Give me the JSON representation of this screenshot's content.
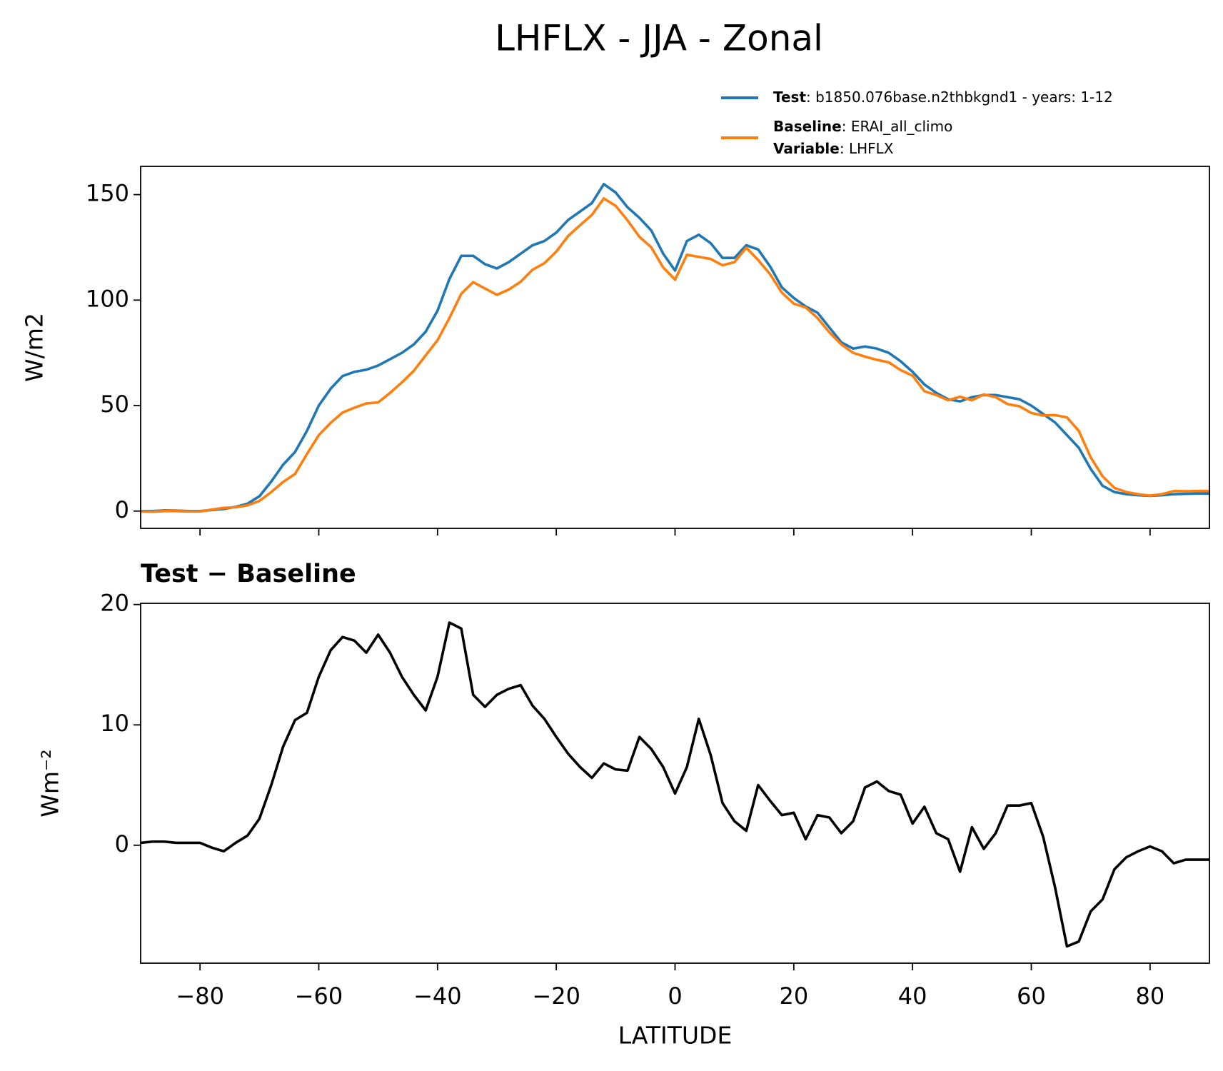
{
  "title": "LHFLX - JJA - Zonal",
  "chart_data": [
    {
      "type": "line",
      "ylabel": "W/m2",
      "xlim": [
        -90,
        90
      ],
      "ylim": [
        -8.2,
        163.4
      ],
      "xticks": [
        -80,
        -60,
        -40,
        -20,
        0,
        20,
        40,
        60,
        80
      ],
      "yticks": [
        0,
        50,
        100,
        150
      ],
      "x": [
        -90,
        -88,
        -86,
        -84,
        -82,
        -80,
        -78,
        -76,
        -74,
        -72,
        -70,
        -68,
        -66,
        -64,
        -62,
        -60,
        -58,
        -56,
        -54,
        -52,
        -50,
        -48,
        -46,
        -44,
        -42,
        -40,
        -38,
        -36,
        -34,
        -32,
        -30,
        -28,
        -26,
        -24,
        -22,
        -20,
        -18,
        -16,
        -14,
        -12,
        -10,
        -8,
        -6,
        -4,
        -2,
        0,
        2,
        4,
        6,
        8,
        10,
        12,
        14,
        16,
        18,
        20,
        22,
        24,
        26,
        28,
        30,
        32,
        34,
        36,
        38,
        40,
        42,
        44,
        46,
        48,
        50,
        52,
        54,
        56,
        58,
        60,
        62,
        64,
        66,
        68,
        70,
        72,
        74,
        76,
        78,
        80,
        82,
        84,
        86,
        88,
        90
      ],
      "series": [
        {
          "name": "Test",
          "label": ": b1850.076base.n2thbkgnd1 - years: 1-12",
          "color": "#1f77b4",
          "values": [
            0,
            0,
            0.3,
            0.2,
            0,
            0,
            0.5,
            1,
            2,
            3.5,
            7,
            14,
            22,
            28,
            38,
            50,
            58,
            64,
            66,
            67,
            69,
            72,
            75,
            79,
            85,
            95,
            110,
            121,
            121,
            117,
            115,
            118,
            122,
            126,
            128,
            132,
            138,
            142,
            146,
            155,
            151,
            144,
            139,
            133,
            122,
            114,
            128,
            131,
            127,
            120,
            120,
            126,
            124,
            116,
            106,
            101,
            97,
            94,
            87,
            80,
            77,
            78,
            77,
            75,
            71,
            66,
            60,
            56,
            53,
            52,
            54,
            55,
            55,
            54,
            53,
            50,
            46,
            42,
            36,
            30,
            20,
            12,
            9,
            8,
            7.5,
            7.2,
            7.5,
            8,
            8.2,
            8.3,
            8.3
          ]
        },
        {
          "name": "Baseline",
          "label": ": ERAI_all_climo",
          "color": "#ff7f0e",
          "values": [
            -0.2,
            -0.3,
            0,
            0,
            -0.2,
            -0.2,
            0.7,
            1.5,
            1.8,
            2.7,
            4.8,
            9,
            13.8,
            17.6,
            27,
            36,
            41.8,
            46.7,
            49,
            51,
            51.5,
            56,
            61,
            66.5,
            73.8,
            81,
            91.5,
            103,
            108.5,
            105.5,
            102.5,
            105,
            108.7,
            114.4,
            117.5,
            123,
            130.4,
            135.5,
            140.4,
            148.2,
            144.7,
            137.8,
            130,
            125,
            115.5,
            109.7,
            121.5,
            120.5,
            119.5,
            116.5,
            118,
            124.8,
            119,
            112.3,
            103.5,
            98.3,
            96.5,
            91.5,
            84.7,
            79,
            75,
            73.2,
            71.7,
            70.5,
            66.8,
            64.2,
            56.8,
            55,
            52.5,
            54.2,
            52.5,
            55.3,
            54,
            50.7,
            49.7,
            46.5,
            45.3,
            45.5,
            44.4,
            38,
            25.5,
            16.5,
            11,
            9,
            8,
            7.3,
            8,
            9.5,
            9.4,
            9.5,
            9.5
          ]
        }
      ],
      "legend_extra": {
        "name": "Variable",
        "label": ": LHFLX"
      }
    },
    {
      "type": "line",
      "title": "Test − Baseline",
      "xlabel": "LATITUDE",
      "ylabel": "Wm⁻²",
      "xlim": [
        -90,
        90
      ],
      "ylim": [
        -9.8,
        20.1
      ],
      "xticks": [
        {
          "value": -80,
          "label": "−80"
        },
        {
          "value": -60,
          "label": "−60"
        },
        {
          "value": -40,
          "label": "−40"
        },
        {
          "value": -20,
          "label": "−20"
        },
        0,
        20,
        40,
        60,
        80
      ],
      "yticks": [
        0,
        10,
        20
      ],
      "x": [
        -90,
        -88,
        -86,
        -84,
        -82,
        -80,
        -78,
        -76,
        -74,
        -72,
        -70,
        -68,
        -66,
        -64,
        -62,
        -60,
        -58,
        -56,
        -54,
        -52,
        -50,
        -48,
        -46,
        -44,
        -42,
        -40,
        -38,
        -36,
        -34,
        -32,
        -30,
        -28,
        -26,
        -24,
        -22,
        -20,
        -18,
        -16,
        -14,
        -12,
        -10,
        -8,
        -6,
        -4,
        -2,
        0,
        2,
        4,
        6,
        8,
        10,
        12,
        14,
        16,
        18,
        20,
        22,
        24,
        26,
        28,
        30,
        32,
        34,
        36,
        38,
        40,
        42,
        44,
        46,
        48,
        50,
        52,
        54,
        56,
        58,
        60,
        62,
        64,
        66,
        68,
        70,
        72,
        74,
        76,
        78,
        80,
        82,
        84,
        86,
        88,
        90
      ],
      "series": [
        {
          "color": "#000000",
          "values": [
            0.2,
            0.3,
            0.3,
            0.2,
            0.2,
            0.2,
            -0.2,
            -0.5,
            0.2,
            0.8,
            2.2,
            5,
            8.2,
            10.4,
            11,
            14,
            16.2,
            17.3,
            17,
            16,
            17.5,
            16,
            14,
            12.5,
            11.2,
            14,
            18.5,
            18,
            12.5,
            11.5,
            12.5,
            13,
            13.3,
            11.6,
            10.5,
            9,
            7.6,
            6.5,
            5.6,
            6.8,
            6.3,
            6.2,
            9,
            8,
            6.5,
            4.3,
            6.5,
            10.5,
            7.5,
            3.5,
            2,
            1.2,
            5,
            3.7,
            2.5,
            2.7,
            0.5,
            2.5,
            2.3,
            1,
            2,
            4.8,
            5.3,
            4.5,
            4.2,
            1.8,
            3.2,
            1,
            0.5,
            -2.2,
            1.5,
            -0.3,
            1,
            3.3,
            3.3,
            3.5,
            0.7,
            -3.5,
            -8.4,
            -8,
            -5.5,
            -4.5,
            -2,
            -1,
            -0.5,
            -0.1,
            -0.5,
            -1.5,
            -1.2,
            -1.2,
            -1.2
          ]
        }
      ]
    }
  ]
}
